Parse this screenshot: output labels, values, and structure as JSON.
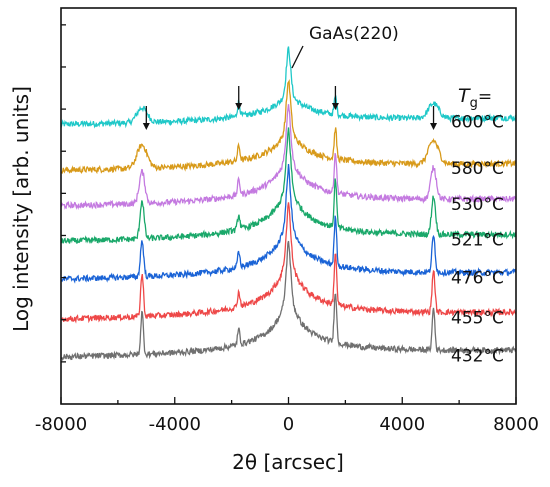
{
  "chart_data": {
    "type": "line",
    "xlabel": "2θ [arcsec]",
    "ylabel": "Log intensity [arb. units]",
    "xlim": [
      -8000,
      8000
    ],
    "x_ticks": [
      "-8000",
      "-4000",
      "0",
      "4000",
      "8000"
    ],
    "annotations": {
      "peak": "GaAs(220)",
      "tg_symbol": "T",
      "tg_subscript": "g",
      "tg_equals": "="
    },
    "arrow_positions": [
      -5000,
      -1750,
      1650,
      5100
    ],
    "series": [
      {
        "name": "600°C",
        "color": "#1fc8c8",
        "baseline": 7.7,
        "sat_height": 0.35,
        "sat_width": 260,
        "cp_height": 0.45
      },
      {
        "name": "580°C",
        "color": "#d89a1a",
        "baseline": 6.6,
        "sat_height": 0.55,
        "sat_width": 250,
        "cp_height": 0.75
      },
      {
        "name": "530°C",
        "color": "#c47ae0",
        "baseline": 5.75,
        "sat_height": 0.75,
        "sat_width": 140,
        "cp_height": 1.0
      },
      {
        "name": "521°C",
        "color": "#1aa86a",
        "baseline": 4.9,
        "sat_height": 0.9,
        "sat_width": 100,
        "cp_height": 1.2
      },
      {
        "name": "476°C",
        "color": "#1a63d6",
        "baseline": 4.0,
        "sat_height": 0.85,
        "sat_width": 80,
        "cp_height": 1.2
      },
      {
        "name": "455°C",
        "color": "#ee4848",
        "baseline": 3.05,
        "sat_height": 1.0,
        "sat_width": 70,
        "cp_height": 1.3
      },
      {
        "name": "432°C",
        "color": "#707070",
        "baseline": 2.15,
        "sat_height": 1.0,
        "sat_width": 65,
        "cp_height": 1.3
      }
    ]
  }
}
